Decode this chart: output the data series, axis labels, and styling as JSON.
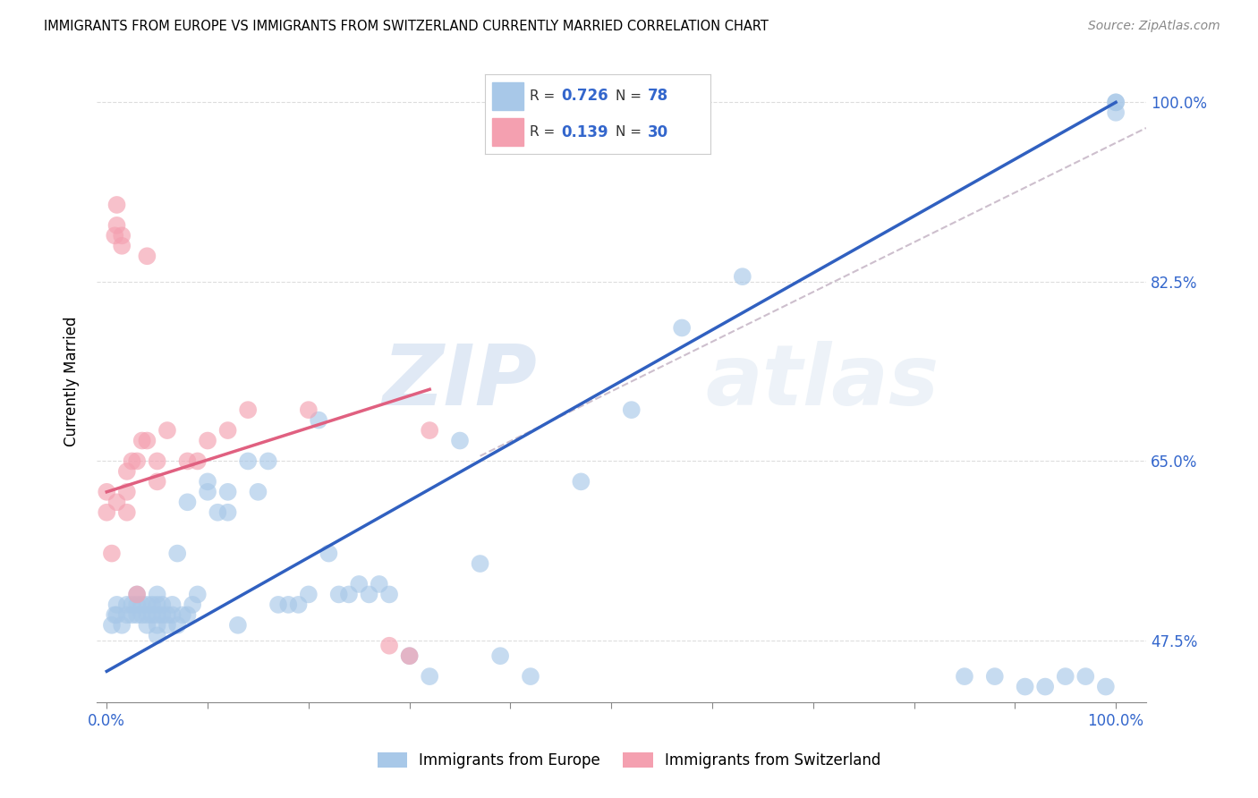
{
  "title": "IMMIGRANTS FROM EUROPE VS IMMIGRANTS FROM SWITZERLAND CURRENTLY MARRIED CORRELATION CHART",
  "source": "Source: ZipAtlas.com",
  "ylabel": "Currently Married",
  "legend_label1": "Immigrants from Europe",
  "legend_label2": "Immigrants from Switzerland",
  "R1": "0.726",
  "N1": "78",
  "R2": "0.139",
  "N2": "30",
  "xlim": [
    -0.01,
    1.03
  ],
  "ylim": [
    0.415,
    1.04
  ],
  "xticks": [
    0.0,
    0.1,
    0.2,
    0.3,
    0.4,
    0.5,
    0.6,
    0.7,
    0.8,
    0.9,
    1.0
  ],
  "xticklabels": [
    "0.0%",
    "",
    "",
    "",
    "",
    "",
    "",
    "",
    "",
    "",
    "100.0%"
  ],
  "yticks": [
    0.475,
    0.65,
    0.825,
    1.0
  ],
  "yticklabels": [
    "47.5%",
    "65.0%",
    "82.5%",
    "100.0%"
  ],
  "color_blue": "#A8C8E8",
  "color_pink": "#F4A0B0",
  "color_blue_line": "#3060C0",
  "color_pink_line": "#E06080",
  "color_dashed_line": "#C8B8C8",
  "watermark_zip": "ZIP",
  "watermark_atlas": "atlas",
  "blue_scatter_x": [
    0.005,
    0.008,
    0.01,
    0.01,
    0.015,
    0.02,
    0.02,
    0.025,
    0.025,
    0.03,
    0.03,
    0.03,
    0.035,
    0.035,
    0.04,
    0.04,
    0.04,
    0.045,
    0.045,
    0.05,
    0.05,
    0.05,
    0.05,
    0.05,
    0.055,
    0.055,
    0.06,
    0.06,
    0.065,
    0.065,
    0.07,
    0.07,
    0.075,
    0.08,
    0.08,
    0.085,
    0.09,
    0.1,
    0.1,
    0.11,
    0.12,
    0.12,
    0.13,
    0.14,
    0.15,
    0.16,
    0.17,
    0.18,
    0.19,
    0.2,
    0.21,
    0.22,
    0.23,
    0.24,
    0.25,
    0.26,
    0.27,
    0.28,
    0.3,
    0.32,
    0.35,
    0.37,
    0.39,
    0.42,
    0.47,
    0.52,
    0.57,
    0.63,
    0.85,
    0.88,
    0.91,
    0.93,
    0.95,
    0.97,
    0.99,
    1.0,
    1.0,
    1.0
  ],
  "blue_scatter_y": [
    0.49,
    0.5,
    0.5,
    0.51,
    0.49,
    0.5,
    0.51,
    0.5,
    0.51,
    0.5,
    0.51,
    0.52,
    0.5,
    0.51,
    0.49,
    0.5,
    0.51,
    0.5,
    0.51,
    0.48,
    0.49,
    0.5,
    0.51,
    0.52,
    0.5,
    0.51,
    0.49,
    0.5,
    0.5,
    0.51,
    0.49,
    0.56,
    0.5,
    0.5,
    0.61,
    0.51,
    0.52,
    0.62,
    0.63,
    0.6,
    0.6,
    0.62,
    0.49,
    0.65,
    0.62,
    0.65,
    0.51,
    0.51,
    0.51,
    0.52,
    0.69,
    0.56,
    0.52,
    0.52,
    0.53,
    0.52,
    0.53,
    0.52,
    0.46,
    0.44,
    0.67,
    0.55,
    0.46,
    0.44,
    0.63,
    0.7,
    0.78,
    0.83,
    0.44,
    0.44,
    0.43,
    0.43,
    0.44,
    0.44,
    0.43,
    0.99,
    1.0,
    1.0
  ],
  "pink_scatter_x": [
    0.005,
    0.008,
    0.01,
    0.01,
    0.015,
    0.015,
    0.02,
    0.02,
    0.02,
    0.025,
    0.03,
    0.03,
    0.035,
    0.04,
    0.04,
    0.05,
    0.05,
    0.06,
    0.08,
    0.09,
    0.1,
    0.12,
    0.14,
    0.2,
    0.28,
    0.3,
    0.32,
    0.0,
    0.0,
    0.01
  ],
  "pink_scatter_y": [
    0.56,
    0.87,
    0.88,
    0.9,
    0.86,
    0.87,
    0.6,
    0.62,
    0.64,
    0.65,
    0.52,
    0.65,
    0.67,
    0.67,
    0.85,
    0.65,
    0.63,
    0.68,
    0.65,
    0.65,
    0.67,
    0.68,
    0.7,
    0.7,
    0.47,
    0.46,
    0.68,
    0.6,
    0.62,
    0.61
  ],
  "blue_line": [
    0.0,
    1.0,
    0.445,
    1.0
  ],
  "pink_line": [
    0.0,
    0.32,
    0.62,
    0.72
  ],
  "dashed_line": [
    0.37,
    1.03,
    0.655,
    0.975
  ]
}
